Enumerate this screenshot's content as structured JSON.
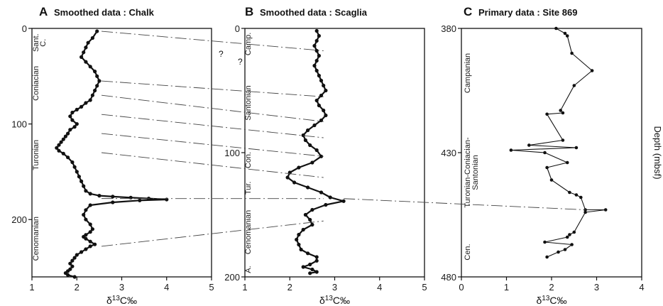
{
  "chart_data": [
    {
      "id": "A",
      "type": "line",
      "letter": "A",
      "title": "Smoothed data : Chalk",
      "xlabel": "δ13C‰",
      "xlim": [
        1,
        5
      ],
      "xticks": [
        "1",
        "2",
        "3",
        "4",
        "5"
      ],
      "ylim": [
        0,
        260
      ],
      "yticks": [
        {
          "value": 0,
          "label": "0"
        },
        {
          "value": 100,
          "label": "100"
        },
        {
          "value": 200,
          "label": "200"
        }
      ],
      "stages": [
        {
          "label": "Sant.",
          "from": 0,
          "to": 30
        },
        {
          "label": "C.",
          "from": 0,
          "to": 30
        },
        {
          "label": "Coniacian",
          "from": 30,
          "to": 85
        },
        {
          "label": "Turonian",
          "from": 85,
          "to": 180
        },
        {
          "label": "Cenomanian",
          "from": 180,
          "to": 260
        }
      ],
      "x": [
        2.45,
        2.35,
        2.25,
        2.2,
        2.15,
        2.1,
        2.2,
        2.3,
        2.4,
        2.45,
        2.5,
        2.45,
        2.4,
        2.35,
        2.3,
        2.2,
        2.1,
        2.0,
        1.9,
        1.85,
        1.9,
        2.0,
        1.95,
        1.85,
        1.8,
        1.75,
        1.7,
        1.65,
        1.6,
        1.55,
        1.6,
        1.7,
        1.8,
        1.9,
        1.95,
        2.0,
        2.05,
        2.1,
        2.15,
        2.2,
        2.3,
        2.5,
        2.8,
        3.2,
        3.6,
        4.0,
        3.4,
        2.8,
        2.3,
        2.2,
        2.15,
        2.2,
        2.3,
        2.35,
        2.3,
        2.2,
        2.15,
        2.2,
        2.3,
        2.4,
        2.3,
        2.2,
        2.1,
        2.0,
        1.95,
        1.9,
        1.85,
        1.9,
        1.85,
        1.8,
        1.75,
        1.8,
        1.95
      ],
      "y": [
        3,
        10,
        15,
        20,
        25,
        30,
        35,
        40,
        45,
        50,
        55,
        60,
        65,
        70,
        75,
        78,
        82,
        85,
        88,
        92,
        96,
        100,
        103,
        106,
        110,
        113,
        116,
        119,
        122,
        125,
        128,
        131,
        135,
        140,
        145,
        150,
        155,
        160,
        165,
        170,
        173,
        175,
        176,
        177,
        178,
        179,
        180,
        182,
        185,
        190,
        195,
        200,
        205,
        210,
        213,
        216,
        218,
        220,
        223,
        226,
        228,
        231,
        234,
        237,
        240,
        243,
        246,
        249,
        252,
        254,
        256,
        258,
        260
      ]
    },
    {
      "id": "B",
      "type": "line",
      "letter": "B",
      "title": "Smoothed data : Scaglia",
      "xlabel": "δ13C‰",
      "xlim": [
        1,
        5
      ],
      "xticks": [
        "1",
        "2",
        "3",
        "4",
        "5"
      ],
      "ylim": [
        0,
        200
      ],
      "yticks": [
        {
          "value": 0,
          "label": "0"
        },
        {
          "value": 100,
          "label": "100"
        },
        {
          "value": 200,
          "label": "200"
        }
      ],
      "stages": [
        {
          "label": "Camp.",
          "from": 0,
          "to": 25
        },
        {
          "label": "Santonian",
          "from": 25,
          "to": 95
        },
        {
          "label": "Con.",
          "from": 95,
          "to": 117
        },
        {
          "label": "Tur.",
          "from": 117,
          "to": 140
        },
        {
          "label": "Cenomanian",
          "from": 140,
          "to": 188
        },
        {
          "label": "A.",
          "from": 188,
          "to": 200
        }
      ],
      "x": [
        2.6,
        2.65,
        2.6,
        2.55,
        2.6,
        2.65,
        2.6,
        2.55,
        2.6,
        2.65,
        2.7,
        2.75,
        2.8,
        2.7,
        2.6,
        2.65,
        2.75,
        2.8,
        2.7,
        2.55,
        2.4,
        2.3,
        2.35,
        2.45,
        2.6,
        2.7,
        2.5,
        2.2,
        2.0,
        1.95,
        2.1,
        2.4,
        2.7,
        2.9,
        3.2,
        2.8,
        2.5,
        2.35,
        2.45,
        2.5,
        2.3,
        2.2,
        2.15,
        2.2,
        2.25,
        2.4,
        2.6,
        2.6,
        2.45,
        2.3,
        2.5,
        2.6,
        2.45
      ],
      "y": [
        2,
        6,
        10,
        14,
        18,
        22,
        26,
        30,
        34,
        38,
        42,
        46,
        50,
        54,
        58,
        62,
        66,
        70,
        74,
        78,
        82,
        86,
        90,
        94,
        98,
        103,
        108,
        112,
        116,
        120,
        124,
        128,
        132,
        136,
        139,
        142,
        146,
        150,
        154,
        158,
        162,
        166,
        170,
        174,
        178,
        181,
        184,
        187,
        190,
        192,
        194,
        196,
        197
      ]
    },
    {
      "id": "C",
      "type": "line",
      "letter": "C",
      "title": "Primary data : Site 869",
      "xlabel": "δ13C‰",
      "ylabel": "Depth (mbsf)",
      "xlim": [
        0,
        4
      ],
      "xticks": [
        "0",
        "1",
        "2",
        "3",
        "4"
      ],
      "ylim": [
        380,
        480
      ],
      "yticks": [
        {
          "value": 380,
          "label": "380"
        },
        {
          "value": 430,
          "label": "430"
        },
        {
          "value": 480,
          "label": "480"
        }
      ],
      "stages": [
        {
          "label": "Campanian",
          "from": 382,
          "to": 414
        },
        {
          "label": "Turonian-Coniacian-",
          "from": 414,
          "to": 462
        },
        {
          "label": "Santonian",
          "from": 414,
          "to": 462
        },
        {
          "label": "Cen.",
          "from": 462,
          "to": 478
        }
      ],
      "x": [
        2.1,
        2.3,
        2.35,
        2.45,
        2.9,
        2.5,
        2.2,
        2.25,
        1.9,
        2.25,
        1.5,
        2.55,
        1.1,
        1.85,
        2.35,
        1.9,
        2.0,
        2.4,
        2.55,
        2.65,
        2.75,
        3.2,
        2.75,
        2.5,
        2.4,
        2.35,
        1.85,
        2.45,
        2.3,
        2.15,
        1.9
      ],
      "y": [
        380,
        382,
        383,
        390,
        397,
        403,
        413,
        414,
        414.5,
        425,
        427,
        428,
        429,
        430,
        434,
        436,
        441,
        446,
        447,
        448,
        453,
        453,
        454,
        462,
        463,
        464,
        466,
        467,
        469,
        470,
        472
      ]
    }
  ],
  "correlations": [
    {
      "a": 3,
      "b": 18,
      "label": "?"
    },
    {
      "a": 55,
      "b": 55
    },
    {
      "a": 70,
      "b": 75
    },
    {
      "a": 90,
      "b": 88
    },
    {
      "a": 110,
      "b": 103
    },
    {
      "a": 130,
      "b": 120
    },
    {
      "a": 178,
      "b": 137,
      "c": 453
    },
    {
      "a": 228,
      "b": 155
    }
  ]
}
